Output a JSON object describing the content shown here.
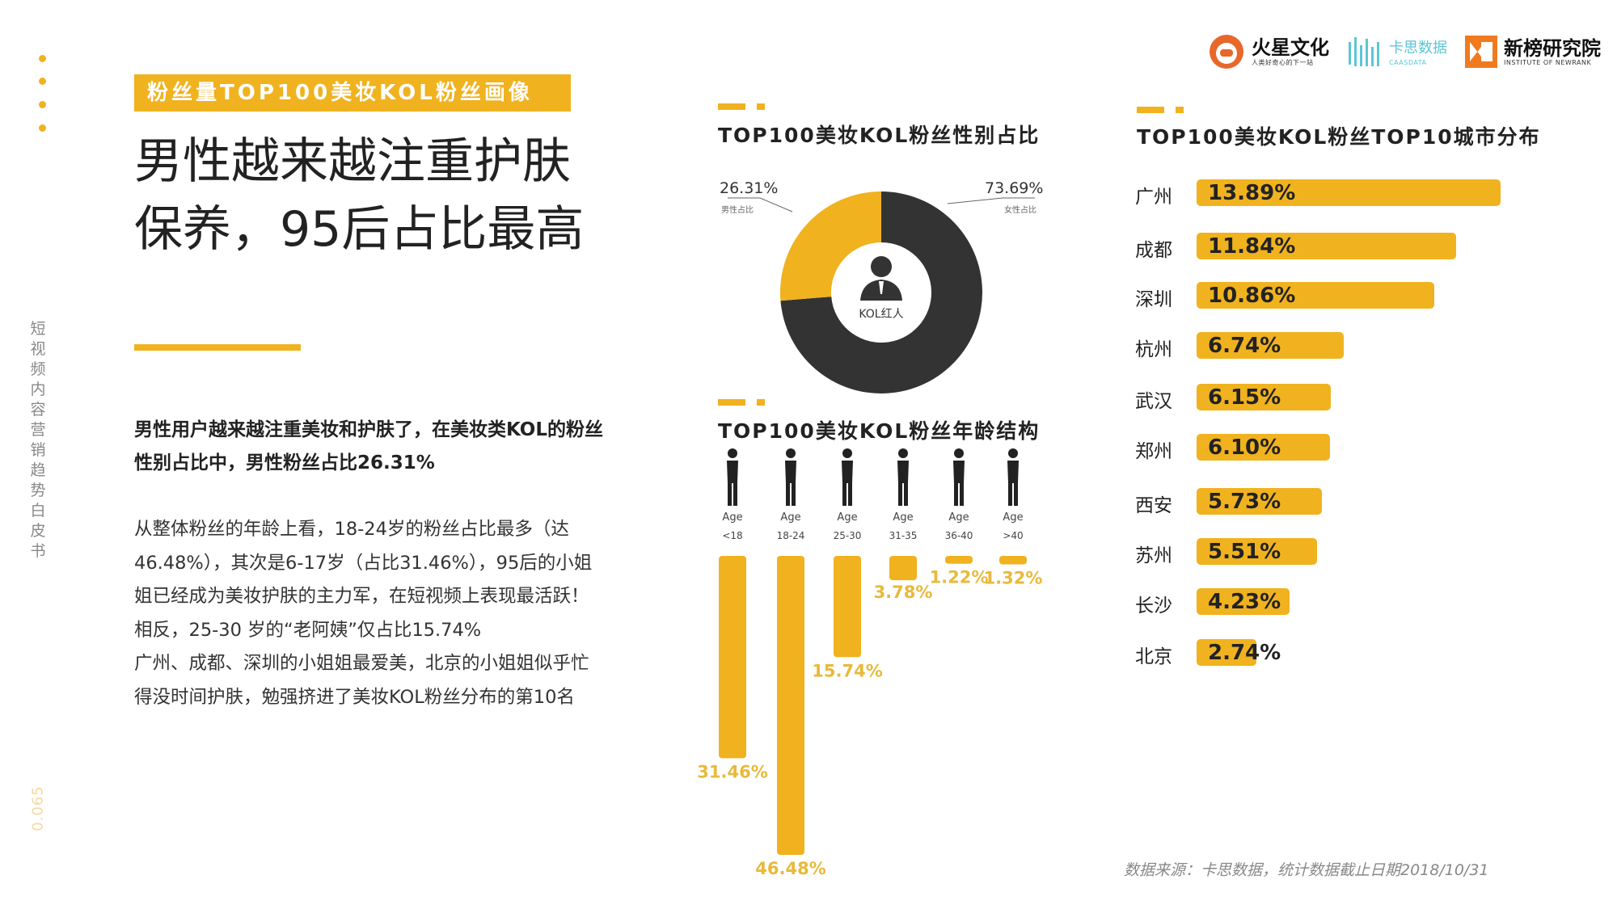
{
  "sidebar": {
    "vertical_title": "短视频内容营销趋势白皮书",
    "page_number": "0.065"
  },
  "header": {
    "section_tag": "粉丝量TOP100美妆KOL粉丝画像",
    "headline_line1": "男性越来越注重护肤",
    "headline_line2": "保养，95后占比最高",
    "logos": {
      "huoxing": {
        "name": "火星文化",
        "sub": "人类好奇心的下一站"
      },
      "kasi": {
        "name": "卡思数据",
        "sub": "CAASDATA"
      },
      "xinbang": {
        "name": "新榜研究院",
        "sub": "INSTITUTE OF NEWRANK"
      }
    }
  },
  "text": {
    "lead": "男性用户越来越注重美妆和护肤了，在美妆类KOL的粉丝性别占比中，男性粉丝占比26.31%",
    "body": "从整体粉丝的年龄上看，18-24岁的粉丝占比最多（达46.48%），其次是6-17岁（占比31.46%），95后的小姐姐已经成为美妆护肤的主力军，在短视频上表现最活跃！相反，25-30 岁的“老阿姨”仅占比15.74%\n广州、成都、深圳的小姐姐最爱美，北京的小姐姐似乎忙得没时间护肤，勉强挤进了美妆KOL粉丝分布的第10名",
    "source": "数据来源：卡思数据，统计数据截止日期2018/10/31"
  },
  "colors": {
    "accent": "#f0b21f",
    "dark": "#333333"
  },
  "chart_data": [
    {
      "type": "pie",
      "title": "TOP100美妆KOL粉丝性别占比",
      "center_label": "KOL红人",
      "slices": [
        {
          "label": "男性占比",
          "value": 26.31,
          "display": "26.31%",
          "color": "#f0b21f"
        },
        {
          "label": "女性占比",
          "value": 73.69,
          "display": "73.69%",
          "color": "#333333"
        }
      ]
    },
    {
      "type": "bar",
      "title": "TOP100美妆KOL粉丝年龄结构",
      "age_prefix": "Age",
      "categories": [
        "<18",
        "18-24",
        "25-30",
        "31-35",
        "36-40",
        ">40"
      ],
      "values": [
        31.46,
        46.48,
        15.74,
        3.78,
        1.22,
        1.32
      ],
      "value_labels": [
        "31.46%",
        "46.48%",
        "15.74%",
        "3.78%",
        "1.22%",
        "1.32%"
      ]
    },
    {
      "type": "bar",
      "title": "TOP100美妆KOL粉丝TOP10城市分布",
      "categories": [
        "广州",
        "成都",
        "深圳",
        "杭州",
        "武汉",
        "郑州",
        "西安",
        "苏州",
        "长沙",
        "北京"
      ],
      "values": [
        13.89,
        11.84,
        10.86,
        6.74,
        6.15,
        6.1,
        5.73,
        5.51,
        4.23,
        2.74
      ],
      "value_labels": [
        "13.89%",
        "11.84%",
        "10.86%",
        "6.74%",
        "6.15%",
        "6.10%",
        "5.73%",
        "5.51%",
        "4.23%",
        "2.74%"
      ]
    }
  ]
}
